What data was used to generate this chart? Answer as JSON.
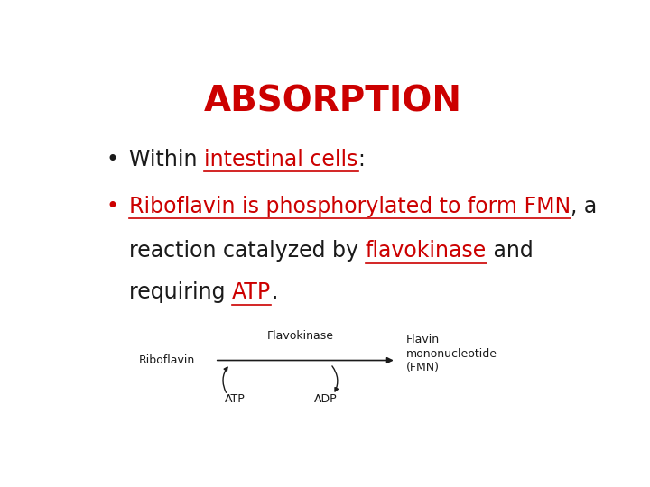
{
  "title": "ABSORPTION",
  "title_color": "#CC0000",
  "title_fontsize": 28,
  "bg_color": "#FFFFFF",
  "plain_color": "#1a1a1a",
  "red_color": "#CC0000",
  "text_fontsize": 17,
  "diagram_riboflavin": "Riboflavin",
  "diagram_flavokinase": "Flavokinase",
  "diagram_fmn_line1": "Flavin",
  "diagram_fmn_line2": "mononucleotide",
  "diagram_fmn_line3": "(FMN)",
  "diagram_atp": "ATP",
  "diagram_adp": "ADP",
  "diagram_color": "#1a1a1a",
  "diagram_fontsize": 9
}
